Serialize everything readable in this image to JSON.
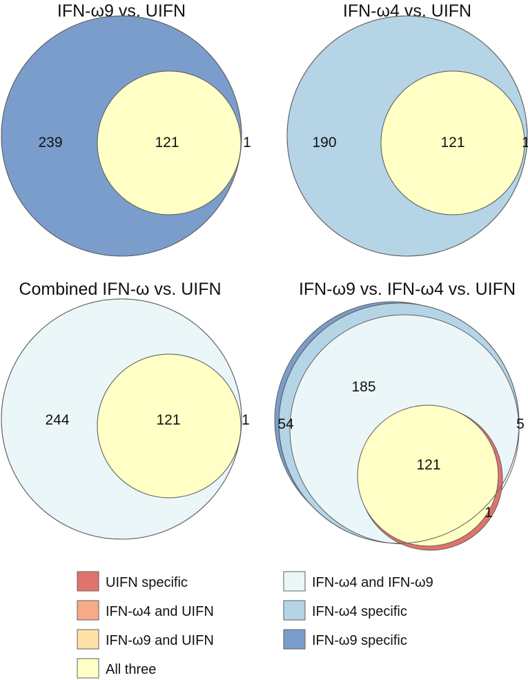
{
  "colors": {
    "uifn_specific": "#e0736b",
    "ifn_w4_and_uifn": "#f6ab86",
    "ifn_w9_and_uifn": "#fde3a7",
    "all_three": "#ffffc6",
    "ifn_w4_and_ifn_w9": "#ebf6f9",
    "ifn_w4_specific": "#b5d4e6",
    "ifn_w9_specific": "#7b9dcb",
    "outline": "#5f5f5f"
  },
  "panels": [
    {
      "title": "IFN-ω9 vs. UIFN",
      "regions": [
        {
          "key": "ifn_w9_specific",
          "count": "239"
        },
        {
          "key": "all_three",
          "count": "121"
        },
        {
          "key": "uifn_specific",
          "count": "1"
        }
      ]
    },
    {
      "title": "IFN-ω4 vs. UIFN",
      "regions": [
        {
          "key": "ifn_w4_specific",
          "count": "190"
        },
        {
          "key": "all_three",
          "count": "121"
        },
        {
          "key": "uifn_specific",
          "count": "1"
        }
      ]
    },
    {
      "title": "Combined IFN-ω vs. UIFN",
      "regions": [
        {
          "key": "ifn_w4_and_ifn_w9",
          "count": "244"
        },
        {
          "key": "all_three",
          "count": "121"
        },
        {
          "key": "uifn_specific",
          "count": "1"
        }
      ]
    },
    {
      "title": "IFN-ω9 vs. IFN-ω4 vs. UIFN",
      "regions": [
        {
          "key": "ifn_w9_specific",
          "count": "54"
        },
        {
          "key": "ifn_w4_and_ifn_w9",
          "count": "185"
        },
        {
          "key": "ifn_w4_specific",
          "count": "5"
        },
        {
          "key": "all_three",
          "count": "121"
        },
        {
          "key": "uifn_specific",
          "count": "1"
        }
      ]
    }
  ],
  "legend": [
    {
      "key": "uifn_specific",
      "label": "UIFN specific"
    },
    {
      "key": "ifn_w4_and_uifn",
      "label": "IFN-ω4 and UIFN"
    },
    {
      "key": "ifn_w9_and_uifn",
      "label": "IFN-ω9 and UIFN"
    },
    {
      "key": "all_three",
      "label": "All three"
    },
    {
      "key": "ifn_w4_and_ifn_w9",
      "label": "IFN-ω4 and IFN-ω9"
    },
    {
      "key": "ifn_w4_specific",
      "label": "IFN-ω4 specific"
    },
    {
      "key": "ifn_w9_specific",
      "label": "IFN-ω9 specific"
    }
  ]
}
